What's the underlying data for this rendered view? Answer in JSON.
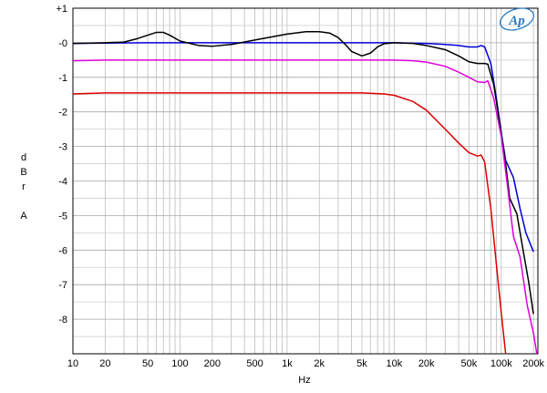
{
  "chart_data": {
    "type": "line",
    "xscale": "log",
    "xlim": [
      10,
      220000
    ],
    "ylim": [
      -9,
      1
    ],
    "grid": true,
    "legend": "none",
    "xlabel": "Hz",
    "ylabel_lines": [
      "d",
      "B",
      "r",
      "",
      "A"
    ],
    "logo": "Ap",
    "x_tick_labels": [
      {
        "x": 10,
        "label": "10"
      },
      {
        "x": 20,
        "label": "20"
      },
      {
        "x": 50,
        "label": "50"
      },
      {
        "x": 100,
        "label": "100"
      },
      {
        "x": 200,
        "label": "200"
      },
      {
        "x": 500,
        "label": "500"
      },
      {
        "x": 1000,
        "label": "1k"
      },
      {
        "x": 2000,
        "label": "2k"
      },
      {
        "x": 5000,
        "label": "5k"
      },
      {
        "x": 10000,
        "label": "10k"
      },
      {
        "x": 20000,
        "label": "20k"
      },
      {
        "x": 50000,
        "label": "50k"
      },
      {
        "x": 100000,
        "label": "100k"
      },
      {
        "x": 200000,
        "label": "200k"
      }
    ],
    "y_tick_labels": [
      {
        "y": 1,
        "label": "+1"
      },
      {
        "y": 0,
        "label": "-0"
      },
      {
        "y": -1,
        "label": "-1"
      },
      {
        "y": -2,
        "label": "-2"
      },
      {
        "y": -3,
        "label": "-3"
      },
      {
        "y": -4,
        "label": "-4"
      },
      {
        "y": -5,
        "label": "-5"
      },
      {
        "y": -6,
        "label": "-6"
      },
      {
        "y": -7,
        "label": "-7"
      },
      {
        "y": -8,
        "label": "-8"
      }
    ],
    "series": [
      {
        "color": "#0000dd",
        "points": [
          [
            10,
            -0.02
          ],
          [
            20,
            -0.01
          ],
          [
            50,
            0
          ],
          [
            100,
            0
          ],
          [
            200,
            0
          ],
          [
            500,
            0
          ],
          [
            1000,
            0
          ],
          [
            2000,
            0
          ],
          [
            5000,
            0
          ],
          [
            10000,
            0
          ],
          [
            20000,
            -0.02
          ],
          [
            30000,
            -0.05
          ],
          [
            40000,
            -0.08
          ],
          [
            50000,
            -0.12
          ],
          [
            60000,
            -0.12
          ],
          [
            65000,
            -0.08
          ],
          [
            70000,
            -0.12
          ],
          [
            80000,
            -0.6
          ],
          [
            90000,
            -1.6
          ],
          [
            100000,
            -2.6
          ],
          [
            110000,
            -3.4
          ],
          [
            130000,
            -3.9
          ],
          [
            150000,
            -4.8
          ],
          [
            170000,
            -5.5
          ],
          [
            200000,
            -6.05
          ]
        ]
      },
      {
        "color": "#000000",
        "points": [
          [
            10,
            -0.02
          ],
          [
            20,
            0
          ],
          [
            30,
            0.02
          ],
          [
            40,
            0.12
          ],
          [
            50,
            0.22
          ],
          [
            60,
            0.3
          ],
          [
            70,
            0.3
          ],
          [
            80,
            0.22
          ],
          [
            100,
            0.05
          ],
          [
            150,
            -0.08
          ],
          [
            200,
            -0.1
          ],
          [
            300,
            -0.05
          ],
          [
            500,
            0.08
          ],
          [
            1000,
            0.25
          ],
          [
            1500,
            0.32
          ],
          [
            2000,
            0.32
          ],
          [
            2500,
            0.28
          ],
          [
            3000,
            0.15
          ],
          [
            3500,
            -0.05
          ],
          [
            4000,
            -0.25
          ],
          [
            5000,
            -0.38
          ],
          [
            6000,
            -0.3
          ],
          [
            7000,
            -0.12
          ],
          [
            8000,
            -0.03
          ],
          [
            10000,
            0
          ],
          [
            15000,
            -0.02
          ],
          [
            20000,
            -0.08
          ],
          [
            30000,
            -0.2
          ],
          [
            40000,
            -0.38
          ],
          [
            50000,
            -0.55
          ],
          [
            60000,
            -0.6
          ],
          [
            70000,
            -0.6
          ],
          [
            75000,
            -0.62
          ],
          [
            85000,
            -1.2
          ],
          [
            100000,
            -2.6
          ],
          [
            110000,
            -3.5
          ],
          [
            120000,
            -4.5
          ],
          [
            140000,
            -4.95
          ],
          [
            160000,
            -6.0
          ],
          [
            180000,
            -6.9
          ],
          [
            200000,
            -7.85
          ]
        ]
      },
      {
        "color": "#dd00dd",
        "points": [
          [
            10,
            -0.52
          ],
          [
            20,
            -0.5
          ],
          [
            50,
            -0.5
          ],
          [
            100,
            -0.5
          ],
          [
            200,
            -0.5
          ],
          [
            500,
            -0.5
          ],
          [
            1000,
            -0.5
          ],
          [
            2000,
            -0.5
          ],
          [
            5000,
            -0.5
          ],
          [
            10000,
            -0.5
          ],
          [
            15000,
            -0.52
          ],
          [
            20000,
            -0.56
          ],
          [
            30000,
            -0.68
          ],
          [
            40000,
            -0.85
          ],
          [
            50000,
            -1.0
          ],
          [
            60000,
            -1.13
          ],
          [
            70000,
            -1.15
          ],
          [
            75000,
            -1.1
          ],
          [
            85000,
            -1.6
          ],
          [
            100000,
            -2.7
          ],
          [
            115000,
            -4.2
          ],
          [
            130000,
            -5.6
          ],
          [
            150000,
            -6.2
          ],
          [
            175000,
            -7.6
          ],
          [
            200000,
            -8.4
          ],
          [
            215000,
            -9.0
          ]
        ]
      },
      {
        "color": "#dd0000",
        "points": [
          [
            10,
            -1.48
          ],
          [
            20,
            -1.45
          ],
          [
            50,
            -1.45
          ],
          [
            100,
            -1.45
          ],
          [
            200,
            -1.45
          ],
          [
            500,
            -1.45
          ],
          [
            1000,
            -1.45
          ],
          [
            2000,
            -1.45
          ],
          [
            5000,
            -1.45
          ],
          [
            8000,
            -1.48
          ],
          [
            10000,
            -1.52
          ],
          [
            15000,
            -1.7
          ],
          [
            20000,
            -1.95
          ],
          [
            30000,
            -2.5
          ],
          [
            40000,
            -2.9
          ],
          [
            50000,
            -3.18
          ],
          [
            60000,
            -3.28
          ],
          [
            65000,
            -3.25
          ],
          [
            70000,
            -3.45
          ],
          [
            80000,
            -4.8
          ],
          [
            90000,
            -6.4
          ],
          [
            100000,
            -7.8
          ],
          [
            110000,
            -9.0
          ]
        ]
      }
    ]
  }
}
